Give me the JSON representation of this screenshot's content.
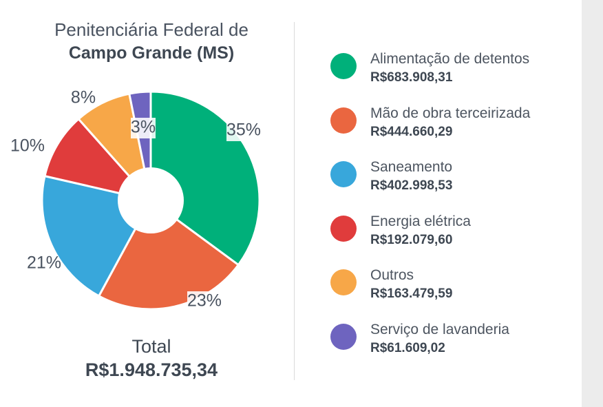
{
  "chart_data": {
    "type": "pie",
    "title_line1": "Penitenciária Federal de",
    "title_line2": "Campo Grande (MS)",
    "total_label": "Total",
    "total_value": "R$1.948.735,34",
    "slices": [
      {
        "name": "Alimentação de detentos",
        "amount": "R$683.908,31",
        "value": 683908.31,
        "percent_label": "35%",
        "color": "#00b07a"
      },
      {
        "name": "Mão de obra terceirizada",
        "amount": "R$444.660,29",
        "value": 444660.29,
        "percent_label": "23%",
        "color": "#ea6640"
      },
      {
        "name": "Saneamento",
        "amount": "R$402.998,53",
        "value": 402998.53,
        "percent_label": "21%",
        "color": "#38a7db"
      },
      {
        "name": "Energia elétrica",
        "amount": "R$192.079,60",
        "value": 192079.6,
        "percent_label": "10%",
        "color": "#e03c3c"
      },
      {
        "name": "Outros",
        "amount": "R$163.479,59",
        "value": 163479.59,
        "percent_label": "8%",
        "color": "#f7a748"
      },
      {
        "name": "Serviço de lavanderia",
        "amount": "R$61.609,02",
        "value": 61609.02,
        "percent_label": "3%",
        "color": "#6e64bf"
      }
    ]
  }
}
